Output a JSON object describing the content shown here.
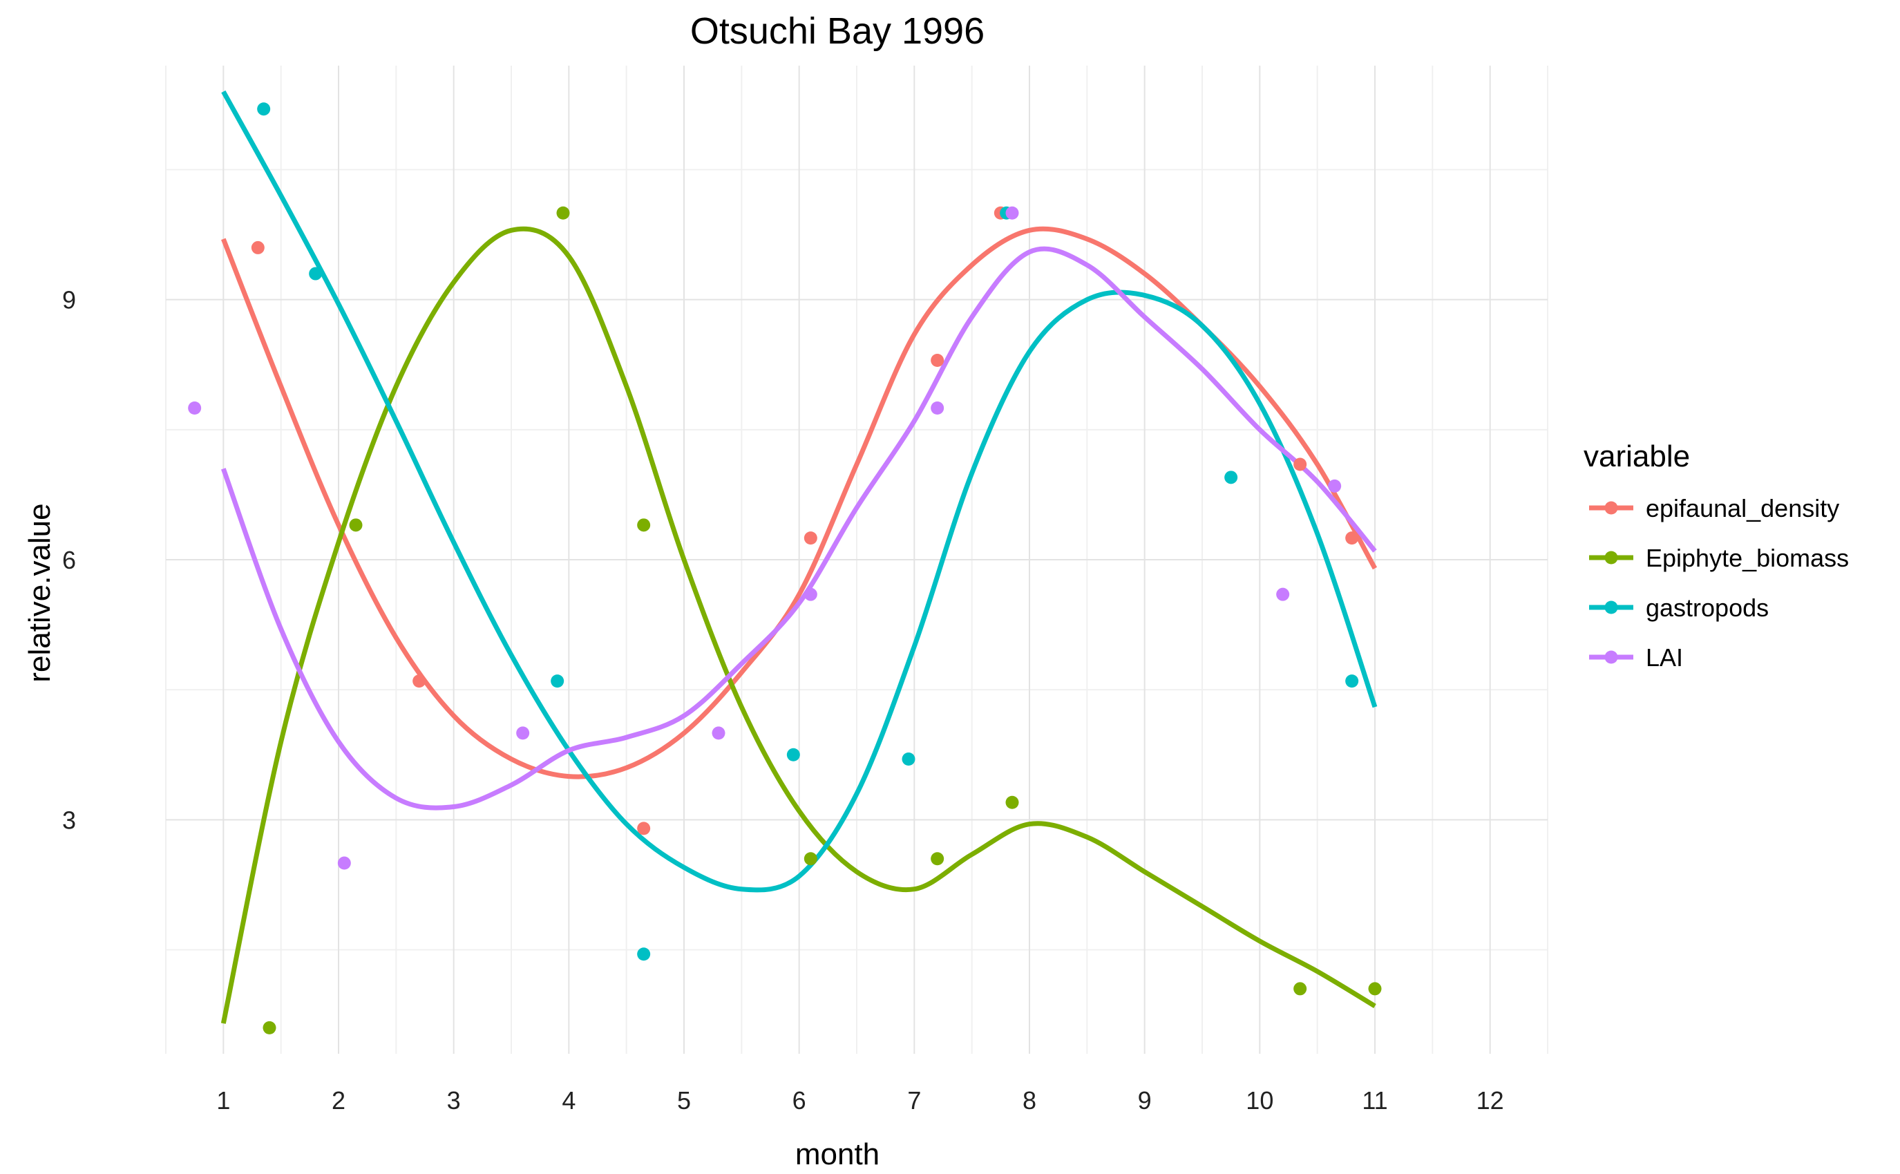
{
  "chart_data": {
    "type": "line",
    "title": "Otsuchi Bay 1996",
    "xlabel": "month",
    "ylabel": "relative.value",
    "xlim": [
      0.5,
      12.5
    ],
    "ylim": [
      0.3,
      11.7
    ],
    "x_ticks": [
      1,
      2,
      3,
      4,
      5,
      6,
      7,
      8,
      9,
      10,
      11,
      12
    ],
    "y_ticks": [
      3,
      6,
      9
    ],
    "grid": true,
    "legend": {
      "title": "variable",
      "position": "right"
    },
    "colors": {
      "epifaunal_density": "#F8766D",
      "Epiphyte_biomass": "#7CAE00",
      "gastropods": "#00BFC4",
      "LAI": "#C77CFF"
    },
    "series": [
      {
        "name": "epifaunal_density",
        "color": "#F8766D",
        "points": [
          [
            1.3,
            9.6
          ],
          [
            2.7,
            4.6
          ],
          [
            4.65,
            2.9
          ],
          [
            6.1,
            6.25
          ],
          [
            7.2,
            8.3
          ],
          [
            7.75,
            10.0
          ],
          [
            10.35,
            7.1
          ],
          [
            10.8,
            6.25
          ]
        ],
        "smooth": [
          [
            1,
            9.7
          ],
          [
            1.5,
            8.0
          ],
          [
            2,
            6.4
          ],
          [
            2.5,
            5.1
          ],
          [
            3,
            4.2
          ],
          [
            3.5,
            3.7
          ],
          [
            4,
            3.5
          ],
          [
            4.5,
            3.6
          ],
          [
            5,
            4.0
          ],
          [
            5.5,
            4.7
          ],
          [
            6,
            5.6
          ],
          [
            6.5,
            7.1
          ],
          [
            7,
            8.6
          ],
          [
            7.5,
            9.4
          ],
          [
            8,
            9.8
          ],
          [
            8.5,
            9.7
          ],
          [
            9,
            9.3
          ],
          [
            9.5,
            8.7
          ],
          [
            10,
            8.0
          ],
          [
            10.5,
            7.1
          ],
          [
            11,
            5.9
          ]
        ]
      },
      {
        "name": "Epiphyte_biomass",
        "color": "#7CAE00",
        "points": [
          [
            1.4,
            0.6
          ],
          [
            2.15,
            6.4
          ],
          [
            3.95,
            10.0
          ],
          [
            4.65,
            6.4
          ],
          [
            6.1,
            2.55
          ],
          [
            7.2,
            2.55
          ],
          [
            7.85,
            3.2
          ],
          [
            10.35,
            1.05
          ],
          [
            11.0,
            1.05
          ]
        ],
        "smooth": [
          [
            1,
            0.65
          ],
          [
            1.5,
            3.9
          ],
          [
            2,
            6.2
          ],
          [
            2.5,
            8.0
          ],
          [
            3,
            9.2
          ],
          [
            3.5,
            9.8
          ],
          [
            4,
            9.5
          ],
          [
            4.5,
            8.0
          ],
          [
            5,
            6.0
          ],
          [
            5.5,
            4.3
          ],
          [
            6,
            3.1
          ],
          [
            6.5,
            2.4
          ],
          [
            7,
            2.2
          ],
          [
            7.5,
            2.6
          ],
          [
            8,
            2.95
          ],
          [
            8.5,
            2.8
          ],
          [
            9,
            2.4
          ],
          [
            9.5,
            2.0
          ],
          [
            10,
            1.6
          ],
          [
            10.5,
            1.25
          ],
          [
            11,
            0.85
          ]
        ]
      },
      {
        "name": "gastropods",
        "color": "#00BFC4",
        "points": [
          [
            1.35,
            11.2
          ],
          [
            1.8,
            9.3
          ],
          [
            3.9,
            4.6
          ],
          [
            4.65,
            1.45
          ],
          [
            5.95,
            3.75
          ],
          [
            6.95,
            3.7
          ],
          [
            7.8,
            10.0
          ],
          [
            9.75,
            6.95
          ],
          [
            10.8,
            4.6
          ]
        ],
        "smooth": [
          [
            1,
            11.4
          ],
          [
            1.5,
            10.2
          ],
          [
            2,
            8.95
          ],
          [
            2.5,
            7.6
          ],
          [
            3,
            6.2
          ],
          [
            3.5,
            4.9
          ],
          [
            4,
            3.8
          ],
          [
            4.5,
            2.95
          ],
          [
            5,
            2.45
          ],
          [
            5.5,
            2.2
          ],
          [
            6,
            2.35
          ],
          [
            6.5,
            3.3
          ],
          [
            7,
            5.0
          ],
          [
            7.5,
            7.0
          ],
          [
            8,
            8.4
          ],
          [
            8.5,
            9.0
          ],
          [
            9,
            9.05
          ],
          [
            9.5,
            8.7
          ],
          [
            10,
            7.8
          ],
          [
            10.5,
            6.3
          ],
          [
            11,
            4.3
          ]
        ]
      },
      {
        "name": "LAI",
        "color": "#C77CFF",
        "points": [
          [
            0.75,
            7.75
          ],
          [
            2.05,
            2.5
          ],
          [
            3.6,
            4.0
          ],
          [
            5.3,
            4.0
          ],
          [
            6.1,
            5.6
          ],
          [
            7.2,
            7.75
          ],
          [
            7.85,
            10.0
          ],
          [
            10.2,
            5.6
          ],
          [
            10.65,
            6.85
          ]
        ],
        "smooth": [
          [
            1,
            7.05
          ],
          [
            1.5,
            5.2
          ],
          [
            2,
            3.9
          ],
          [
            2.5,
            3.25
          ],
          [
            3,
            3.15
          ],
          [
            3.5,
            3.4
          ],
          [
            4,
            3.8
          ],
          [
            4.5,
            3.95
          ],
          [
            5,
            4.2
          ],
          [
            5.5,
            4.8
          ],
          [
            6,
            5.5
          ],
          [
            6.5,
            6.6
          ],
          [
            7,
            7.6
          ],
          [
            7.5,
            8.8
          ],
          [
            8,
            9.55
          ],
          [
            8.5,
            9.4
          ],
          [
            9,
            8.8
          ],
          [
            9.5,
            8.2
          ],
          [
            10,
            7.5
          ],
          [
            10.5,
            6.9
          ],
          [
            11,
            6.1
          ]
        ]
      }
    ]
  }
}
